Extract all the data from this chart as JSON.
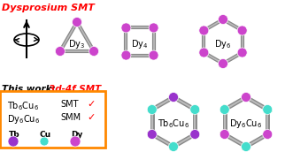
{
  "title_top": "Dysprosium SMT",
  "title_bottom": "This work: ",
  "title_bottom_red": "3d-4f SMT",
  "box_text_line1": "Tb₆Cu₆",
  "box_text_line1b": "SMT",
  "box_text_line2": "Dy₆Cu₆",
  "box_text_line2b": "SMM",
  "legend_tb": "Tb",
  "legend_cu": "Cu",
  "legend_dy": "Dy",
  "color_dy": "#CC44CC",
  "color_tb": "#9933CC",
  "color_cu": "#44DDCC",
  "color_edge": "#555555",
  "color_arrow": "#44BB00",
  "color_box_border": "#FF8800",
  "color_title_red": "#FF0000",
  "bg_color": "#FFFFFF"
}
